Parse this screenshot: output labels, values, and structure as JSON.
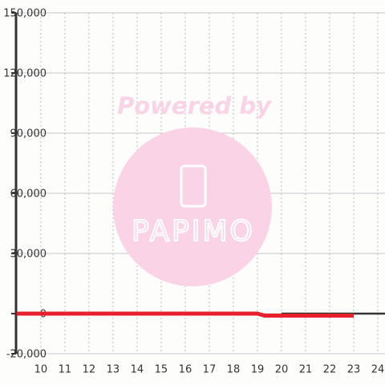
{
  "chart_data": {
    "type": "line",
    "watermark": {
      "title": "Powered by",
      "brand": "PAPIMO"
    },
    "series": [
      {
        "color": "#e8202e",
        "x": [
          9,
          10,
          11,
          12,
          13,
          14,
          15,
          16,
          17,
          18,
          19,
          19.3,
          20,
          21,
          22,
          23
        ],
        "values": [
          0,
          0,
          0,
          0,
          0,
          0,
          0,
          0,
          0,
          0,
          0,
          -1000,
          -1000,
          -1000,
          -1000,
          -1000
        ]
      },
      {
        "color": "#333333",
        "x": [
          20,
          21,
          22,
          23,
          24,
          24.3
        ],
        "values": [
          0,
          0,
          0,
          0,
          0,
          0
        ]
      }
    ],
    "xlim": [
      8.97,
      24.3
    ],
    "xticks": [
      10,
      11,
      12,
      13,
      14,
      15,
      16,
      17,
      18,
      19,
      20,
      21,
      22,
      23,
      24
    ],
    "ylim": [
      -20000,
      150000
    ],
    "yticks": [
      {
        "value": -20000,
        "label": "-20,000"
      },
      0,
      {
        "value": 30000,
        "label": "30,000"
      },
      {
        "value": 60000,
        "label": "60,000"
      },
      {
        "value": 90000,
        "label": "90,000"
      },
      {
        "value": 120000,
        "label": "120,000"
      },
      {
        "value": 150000,
        "label": "150,000"
      }
    ],
    "grid": true
  }
}
